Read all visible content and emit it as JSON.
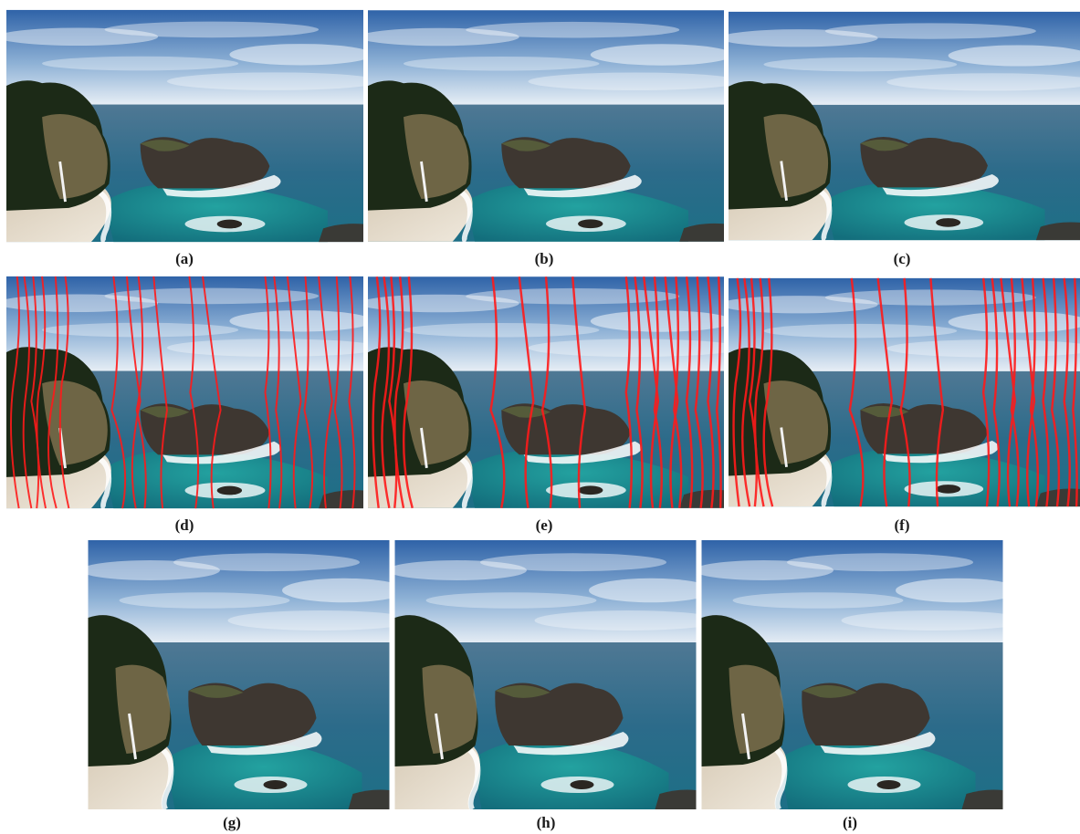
{
  "figure": {
    "panels": [
      {
        "id": "a",
        "label": "(a)",
        "seams": false,
        "crop": "full"
      },
      {
        "id": "b",
        "label": "(b)",
        "seams": false,
        "crop": "full"
      },
      {
        "id": "c",
        "label": "(c)",
        "seams": false,
        "crop": "full"
      },
      {
        "id": "d",
        "label": "(d)",
        "seams": true,
        "crop": "full"
      },
      {
        "id": "e",
        "label": "(e)",
        "seams": true,
        "crop": "full"
      },
      {
        "id": "f",
        "label": "(f)",
        "seams": true,
        "crop": "full"
      },
      {
        "id": "g",
        "label": "(g)",
        "seams": false,
        "crop": "narrow"
      },
      {
        "id": "h",
        "label": "(h)",
        "seams": false,
        "crop": "narrow"
      },
      {
        "id": "i",
        "label": "(i)",
        "seams": false,
        "crop": "narrow"
      }
    ],
    "colors": {
      "sky_top": "#3a6fb3",
      "sky_bottom": "#e9f0f6",
      "sea": "#2f6f8f",
      "lagoon": "#1f8f93",
      "foliage": "#1f2e1a",
      "rock": "#4a423a",
      "sand": "#e2d8c8",
      "seam": "#ff1a1a"
    }
  }
}
